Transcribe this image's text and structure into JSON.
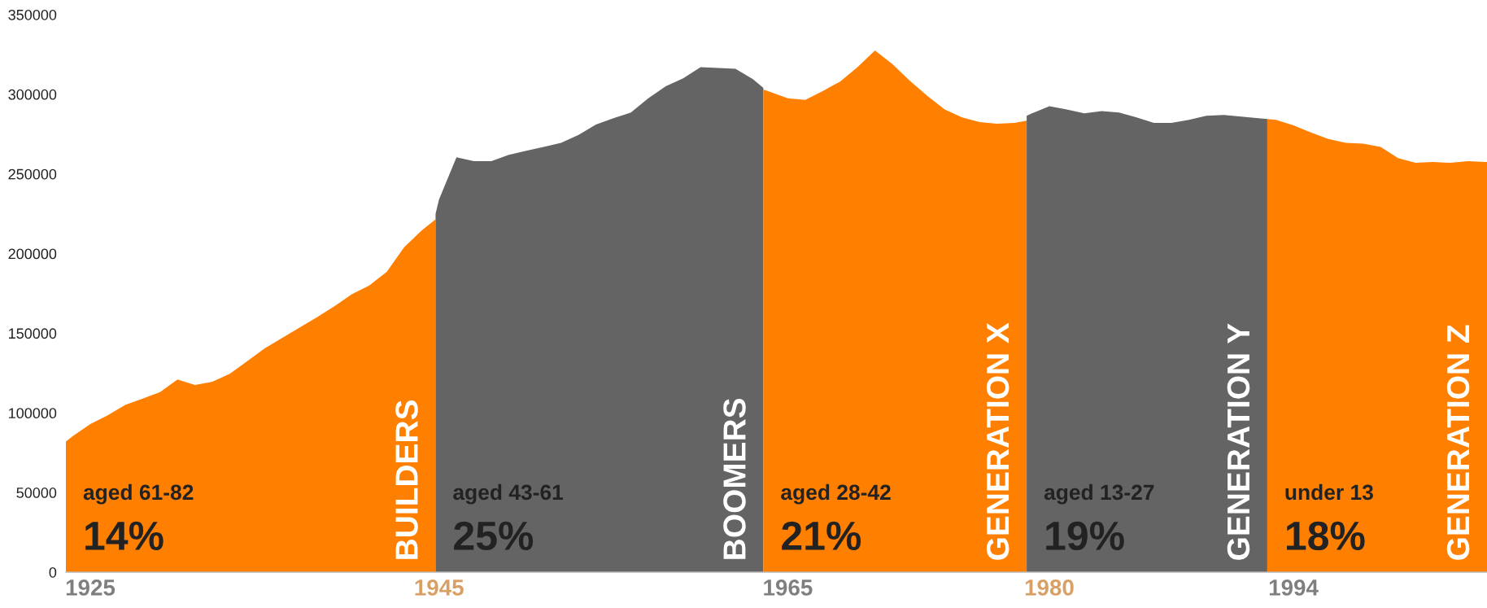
{
  "chart_data": {
    "type": "area",
    "series": [
      {
        "name": "BUILDERS",
        "color": "#ff7f00",
        "x": [
          1923.6,
          1924,
          1925,
          1926,
          1927,
          1928,
          1929,
          1930,
          1931,
          1932,
          1933,
          1934,
          1935,
          1936,
          1937,
          1938,
          1939,
          1940,
          1941,
          1942,
          1943,
          1944,
          1944.8
        ],
        "values": [
          82000,
          85500,
          93000,
          98500,
          105000,
          109000,
          113000,
          121000,
          117500,
          119500,
          124500,
          132500,
          140500,
          147000,
          153500,
          160000,
          167000,
          174500,
          180000,
          188500,
          204000,
          214500,
          221500
        ]
      },
      {
        "name": "BOOMERS",
        "color": "#646464",
        "x": [
          1944.8,
          1945,
          1946,
          1947,
          1948,
          1949,
          1950,
          1951,
          1952,
          1953,
          1954,
          1955,
          1956,
          1957,
          1958,
          1959,
          1960,
          1961,
          1962,
          1963,
          1963.6
        ],
        "values": [
          225000,
          234000,
          260500,
          258000,
          258000,
          262000,
          264500,
          267000,
          269500,
          274500,
          281000,
          285000,
          288500,
          297500,
          305000,
          310000,
          317000,
          316500,
          316000,
          309500,
          304000
        ]
      },
      {
        "name": "GENERATION X",
        "color": "#ff7f00",
        "x": [
          1963.6,
          1964,
          1965,
          1966,
          1967,
          1968,
          1969,
          1970,
          1971,
          1972,
          1973,
          1974,
          1975,
          1976,
          1977,
          1978,
          1978.7
        ],
        "values": [
          303000,
          301500,
          297500,
          296500,
          302000,
          308000,
          317000,
          327500,
          319000,
          308500,
          299000,
          290500,
          285500,
          282500,
          281500,
          282000,
          283500
        ]
      },
      {
        "name": "GENERATION Y",
        "color": "#646464",
        "x": [
          1978.7,
          1979,
          1980,
          1981,
          1982,
          1983,
          1984,
          1985,
          1986,
          1987,
          1988,
          1989,
          1990,
          1991,
          1992,
          1992.5
        ],
        "values": [
          286500,
          288000,
          292500,
          290500,
          288000,
          289500,
          288500,
          285500,
          282000,
          282000,
          284000,
          286500,
          287000,
          286000,
          285000,
          284500
        ]
      },
      {
        "name": "GENERATION Z",
        "color": "#ff7f00",
        "x": [
          1992.5,
          1993,
          1994,
          1995,
          1996,
          1997,
          1998,
          1999,
          2000,
          2001,
          2002,
          2003,
          2004,
          2005,
          2005.1
        ],
        "values": [
          284500,
          284000,
          280500,
          276000,
          272000,
          269500,
          269000,
          267000,
          260000,
          257000,
          257500,
          257000,
          258000,
          257500,
          257500
        ]
      }
    ],
    "annotations": [
      "aged 61-82",
      "14%",
      "aged 43-61",
      "25%",
      "aged 28-42",
      "21%",
      "aged 13-27",
      "19%",
      "under 13",
      "18%"
    ],
    "xlim": [
      1923.6,
      2005.1
    ],
    "xticks": [
      1925,
      1945,
      1965,
      1980,
      1994
    ],
    "ylim": [
      0,
      350000
    ],
    "yticks": [
      0,
      50000,
      100000,
      150000,
      200000,
      250000,
      300000,
      350000
    ],
    "grid": false,
    "legend": false
  }
}
